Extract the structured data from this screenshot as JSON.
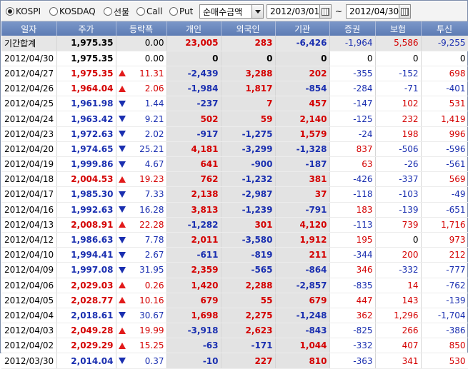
{
  "toolbar": {
    "markets": [
      {
        "label": "KOSPI",
        "selected": true
      },
      {
        "label": "KOSDAQ",
        "selected": false
      },
      {
        "label": "선물",
        "selected": false
      },
      {
        "label": "Call",
        "selected": false
      },
      {
        "label": "Put",
        "selected": false
      }
    ],
    "measure": "순매수금액",
    "date_from": "2012/03/01",
    "date_sep": "~",
    "date_to": "2012/04/30"
  },
  "colors": {
    "up": "#d40000",
    "down": "#1a2fb0",
    "header": "#6b89c0"
  },
  "columns": [
    "일자",
    "주가",
    "등락폭",
    "개인",
    "외국인",
    "기관",
    "증권",
    "보험",
    "투신"
  ],
  "summary": {
    "label": "기간합계",
    "price": "1,975.35",
    "change": "0.00",
    "individual": "23,005",
    "foreign": "283",
    "institution": "-6,426",
    "securities": "-1,964",
    "insurance": "5,586",
    "investment_trust": "-9,255"
  },
  "rows": [
    {
      "date": "2012/04/30",
      "price": "1,975.35",
      "dir": "flat",
      "change": "0.00",
      "individual": "0",
      "foreign": "0",
      "institution": "0",
      "securities": "0",
      "insurance": "0",
      "investment_trust": "0"
    },
    {
      "date": "2012/04/27",
      "price": "1,975.35",
      "dir": "up",
      "change": "11.31",
      "individual": "-2,439",
      "foreign": "3,288",
      "institution": "202",
      "securities": "-355",
      "insurance": "-152",
      "investment_trust": "698"
    },
    {
      "date": "2012/04/26",
      "price": "1,964.04",
      "dir": "up",
      "change": "2.06",
      "individual": "-1,984",
      "foreign": "1,817",
      "institution": "-854",
      "securities": "-284",
      "insurance": "-71",
      "investment_trust": "-401"
    },
    {
      "date": "2012/04/25",
      "price": "1,961.98",
      "dir": "down",
      "change": "1.44",
      "individual": "-237",
      "foreign": "7",
      "institution": "457",
      "securities": "-147",
      "insurance": "102",
      "investment_trust": "531"
    },
    {
      "date": "2012/04/24",
      "price": "1,963.42",
      "dir": "down",
      "change": "9.21",
      "individual": "502",
      "foreign": "59",
      "institution": "2,140",
      "securities": "-125",
      "insurance": "232",
      "investment_trust": "1,419"
    },
    {
      "date": "2012/04/23",
      "price": "1,972.63",
      "dir": "down",
      "change": "2.02",
      "individual": "-917",
      "foreign": "-1,275",
      "institution": "1,579",
      "securities": "-24",
      "insurance": "198",
      "investment_trust": "996"
    },
    {
      "date": "2012/04/20",
      "price": "1,974.65",
      "dir": "down",
      "change": "25.21",
      "individual": "4,181",
      "foreign": "-3,299",
      "institution": "-1,328",
      "securities": "837",
      "insurance": "-506",
      "investment_trust": "-596"
    },
    {
      "date": "2012/04/19",
      "price": "1,999.86",
      "dir": "down",
      "change": "4.67",
      "individual": "641",
      "foreign": "-900",
      "institution": "-187",
      "securities": "63",
      "insurance": "-26",
      "investment_trust": "-561"
    },
    {
      "date": "2012/04/18",
      "price": "2,004.53",
      "dir": "up",
      "change": "19.23",
      "individual": "762",
      "foreign": "-1,232",
      "institution": "381",
      "securities": "-426",
      "insurance": "-337",
      "investment_trust": "569"
    },
    {
      "date": "2012/04/17",
      "price": "1,985.30",
      "dir": "down",
      "change": "7.33",
      "individual": "2,138",
      "foreign": "-2,987",
      "institution": "37",
      "securities": "-118",
      "insurance": "-103",
      "investment_trust": "-49"
    },
    {
      "date": "2012/04/16",
      "price": "1,992.63",
      "dir": "down",
      "change": "16.28",
      "individual": "3,813",
      "foreign": "-1,239",
      "institution": "-791",
      "securities": "183",
      "insurance": "-139",
      "investment_trust": "-651"
    },
    {
      "date": "2012/04/13",
      "price": "2,008.91",
      "dir": "up",
      "change": "22.28",
      "individual": "-1,282",
      "foreign": "301",
      "institution": "4,120",
      "securities": "-113",
      "insurance": "739",
      "investment_trust": "1,716"
    },
    {
      "date": "2012/04/12",
      "price": "1,986.63",
      "dir": "down",
      "change": "7.78",
      "individual": "2,011",
      "foreign": "-3,580",
      "institution": "1,912",
      "securities": "195",
      "insurance": "0",
      "investment_trust": "973"
    },
    {
      "date": "2012/04/10",
      "price": "1,994.41",
      "dir": "down",
      "change": "2.67",
      "individual": "-611",
      "foreign": "-819",
      "institution": "211",
      "securities": "-344",
      "insurance": "200",
      "investment_trust": "212"
    },
    {
      "date": "2012/04/09",
      "price": "1,997.08",
      "dir": "down",
      "change": "31.95",
      "individual": "2,359",
      "foreign": "-565",
      "institution": "-864",
      "securities": "346",
      "insurance": "-332",
      "investment_trust": "-777"
    },
    {
      "date": "2012/04/06",
      "price": "2,029.03",
      "dir": "up",
      "change": "0.26",
      "individual": "1,420",
      "foreign": "2,288",
      "institution": "-2,857",
      "securities": "-835",
      "insurance": "14",
      "investment_trust": "-762"
    },
    {
      "date": "2012/04/05",
      "price": "2,028.77",
      "dir": "up",
      "change": "10.16",
      "individual": "679",
      "foreign": "55",
      "institution": "679",
      "securities": "447",
      "insurance": "143",
      "investment_trust": "-139"
    },
    {
      "date": "2012/04/04",
      "price": "2,018.61",
      "dir": "down",
      "change": "30.67",
      "individual": "1,698",
      "foreign": "2,275",
      "institution": "-1,248",
      "securities": "362",
      "insurance": "1,296",
      "investment_trust": "-1,704"
    },
    {
      "date": "2012/04/03",
      "price": "2,049.28",
      "dir": "up",
      "change": "19.99",
      "individual": "-3,918",
      "foreign": "2,623",
      "institution": "-843",
      "securities": "-825",
      "insurance": "266",
      "investment_trust": "-386"
    },
    {
      "date": "2012/04/02",
      "price": "2,029.29",
      "dir": "up",
      "change": "15.25",
      "individual": "-63",
      "foreign": "-171",
      "institution": "1,044",
      "securities": "-332",
      "insurance": "407",
      "investment_trust": "850"
    },
    {
      "date": "2012/03/30",
      "price": "2,014.04",
      "dir": "down",
      "change": "0.37",
      "individual": "-10",
      "foreign": "227",
      "institution": "810",
      "securities": "-363",
      "insurance": "341",
      "investment_trust": "530"
    }
  ]
}
